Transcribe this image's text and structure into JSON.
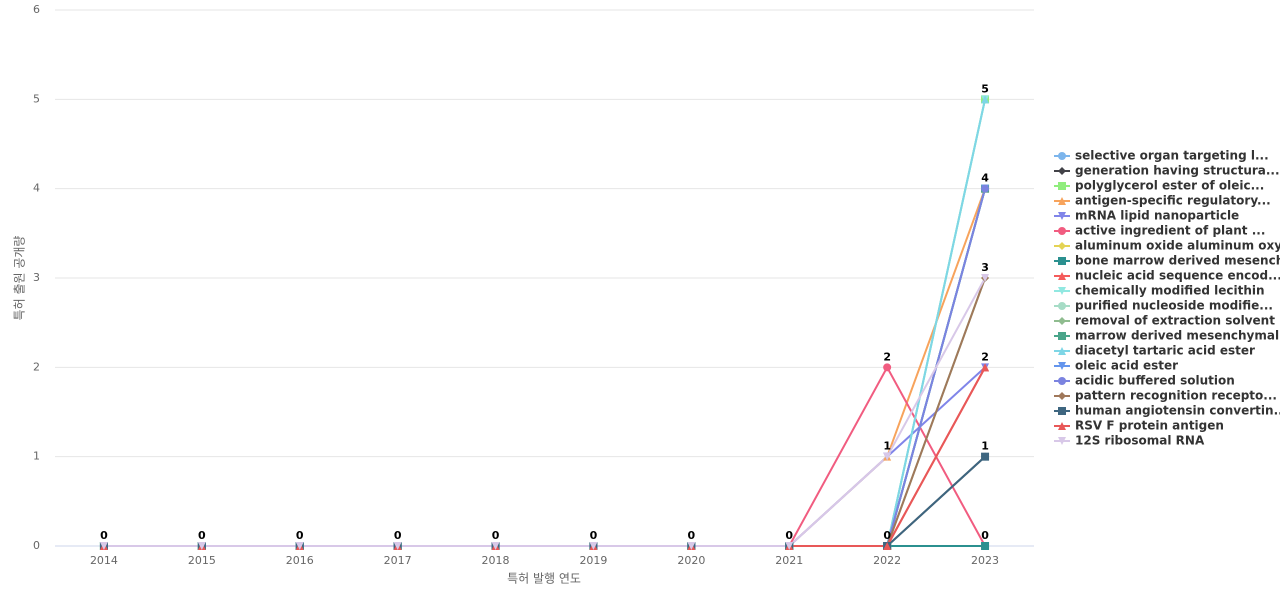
{
  "chart_data": {
    "type": "line",
    "x_label": "특허 발행 연도",
    "y_label": "특허 출원 공개량",
    "categories": [
      "2014",
      "2015",
      "2016",
      "2017",
      "2018",
      "2019",
      "2020",
      "2021",
      "2022",
      "2023"
    ],
    "ylim": [
      0,
      6
    ],
    "yticks": [
      0,
      1,
      2,
      3,
      4,
      5,
      6
    ],
    "grid": true,
    "series": [
      {
        "name": "selective organ targeting l...",
        "color": "#7cb5ec",
        "marker": "circle",
        "values": [
          0,
          0,
          0,
          0,
          0,
          0,
          0,
          0,
          0,
          4
        ]
      },
      {
        "name": "generation having structura...",
        "color": "#434348",
        "marker": "diamond",
        "values": [
          0,
          0,
          0,
          0,
          0,
          0,
          0,
          0,
          0,
          1
        ]
      },
      {
        "name": "polyglycerol ester of oleic...",
        "color": "#90ed7d",
        "marker": "square",
        "values": [
          0,
          0,
          0,
          0,
          0,
          0,
          0,
          0,
          0,
          5
        ]
      },
      {
        "name": "antigen-specific regulatory...",
        "color": "#f7a35c",
        "marker": "triangle",
        "values": [
          0,
          0,
          0,
          0,
          0,
          0,
          0,
          0,
          1,
          4
        ]
      },
      {
        "name": "mRNA lipid nanoparticle",
        "color": "#8085e9",
        "marker": "triangle-down",
        "values": [
          0,
          0,
          0,
          0,
          0,
          0,
          0,
          0,
          1,
          2
        ]
      },
      {
        "name": "active ingredient of plant ...",
        "color": "#f15c80",
        "marker": "circle",
        "values": [
          0,
          0,
          0,
          0,
          0,
          0,
          0,
          0,
          2,
          0
        ]
      },
      {
        "name": "aluminum oxide aluminum oxy...",
        "color": "#e4d354",
        "marker": "diamond",
        "values": [
          0,
          0,
          0,
          0,
          0,
          0,
          0,
          0,
          0,
          4
        ]
      },
      {
        "name": "bone marrow derived mesench...",
        "color": "#2b908f",
        "marker": "square",
        "values": [
          0,
          0,
          0,
          0,
          0,
          0,
          0,
          0,
          0,
          0
        ]
      },
      {
        "name": "nucleic acid sequence encod...",
        "color": "#f45b5b",
        "marker": "triangle",
        "values": [
          0,
          0,
          0,
          0,
          0,
          0,
          0,
          0,
          0,
          2
        ]
      },
      {
        "name": "chemically modified lecithin",
        "color": "#91e8e1",
        "marker": "triangle-down",
        "values": [
          0,
          0,
          0,
          0,
          0,
          0,
          0,
          0,
          0,
          5
        ]
      },
      {
        "name": "purified nucleoside modifie...",
        "color": "#a6dcc6",
        "marker": "circle",
        "values": [
          0,
          0,
          0,
          0,
          0,
          0,
          0,
          0,
          0,
          4
        ]
      },
      {
        "name": "removal of extraction solvent",
        "color": "#8fbc8f",
        "marker": "diamond",
        "values": [
          0,
          0,
          0,
          0,
          0,
          0,
          0,
          0,
          0,
          3
        ]
      },
      {
        "name": "marrow derived mesenchymal ...",
        "color": "#4aa58a",
        "marker": "square",
        "values": [
          0,
          0,
          0,
          0,
          0,
          0,
          0,
          0,
          0,
          4
        ]
      },
      {
        "name": "diacetyl tartaric acid ester",
        "color": "#7ed6e6",
        "marker": "triangle",
        "values": [
          0,
          0,
          0,
          0,
          0,
          0,
          0,
          0,
          0,
          5
        ]
      },
      {
        "name": "oleic acid ester",
        "color": "#6495ed",
        "marker": "triangle-down",
        "values": [
          0,
          0,
          0,
          0,
          0,
          0,
          0,
          0,
          0,
          4
        ]
      },
      {
        "name": "acidic buffered solution",
        "color": "#7b83e0",
        "marker": "circle",
        "values": [
          0,
          0,
          0,
          0,
          0,
          0,
          0,
          0,
          0,
          4
        ]
      },
      {
        "name": "pattern recognition recepto...",
        "color": "#a0785a",
        "marker": "diamond",
        "values": [
          0,
          0,
          0,
          0,
          0,
          0,
          0,
          0,
          0,
          3
        ]
      },
      {
        "name": "human angiotensin convertin...",
        "color": "#3e6680",
        "marker": "square",
        "values": [
          0,
          0,
          0,
          0,
          0,
          0,
          0,
          0,
          0,
          1
        ]
      },
      {
        "name": "RSV F protein antigen",
        "color": "#e85858",
        "marker": "triangle",
        "values": [
          0,
          0,
          0,
          0,
          0,
          0,
          0,
          0,
          0,
          2
        ]
      },
      {
        "name": "12S ribosomal RNA",
        "color": "#d8c8e8",
        "marker": "triangle-down",
        "values": [
          0,
          0,
          0,
          0,
          0,
          0,
          0,
          0,
          1,
          3
        ]
      }
    ]
  }
}
